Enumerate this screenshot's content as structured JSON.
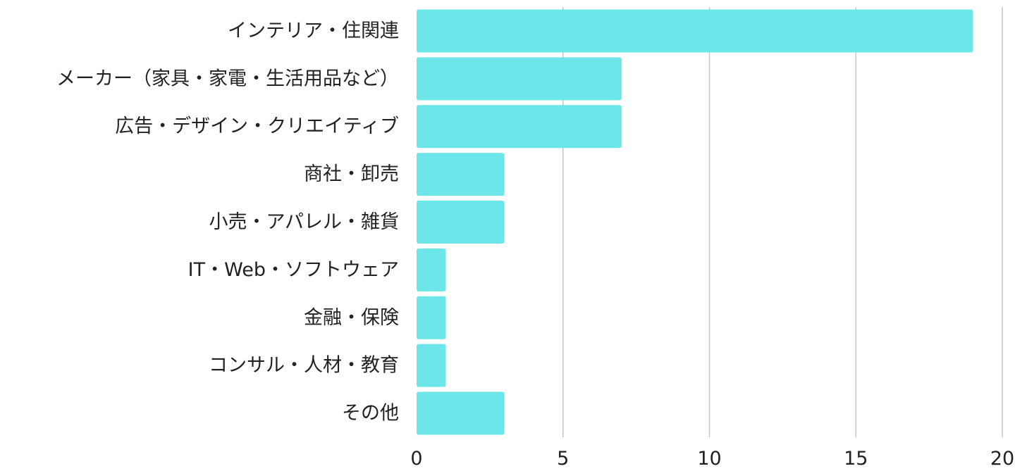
{
  "chart_data": {
    "type": "bar",
    "orientation": "horizontal",
    "categories": [
      "インテリア・住関連",
      "メーカー（家具・家電・生活用品など）",
      "広告・デザイン・クリエイティブ",
      "商社・卸売",
      "小売・アパレル・雑貨",
      "IT・Web・ソフトウェア",
      "金融・保険",
      "コンサル・人材・教育",
      "その他"
    ],
    "values": [
      19,
      7,
      7,
      3,
      3,
      1,
      1,
      1,
      3
    ],
    "xlim": [
      0,
      20
    ],
    "xticks": [
      0,
      5,
      10,
      15,
      20
    ],
    "xtick_labels": [
      "0",
      "5",
      "10",
      "15",
      "20"
    ],
    "grid": "vertical",
    "bar_color": "#6de6e9",
    "grid_color": "#c6c6c6",
    "title": "",
    "xlabel": "",
    "ylabel": ""
  }
}
